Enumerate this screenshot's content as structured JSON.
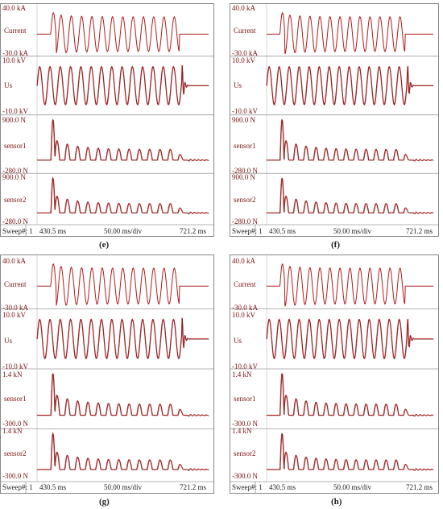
{
  "panels": [
    {
      "id": "e",
      "caption": "(e)",
      "channels": [
        {
          "name": "Current",
          "top": "40.0 kA",
          "bottom": "-30.0 kA"
        },
        {
          "name": "Us",
          "top": "10.0 kV",
          "bottom": "-10.0 kV"
        },
        {
          "name": "sensor1",
          "top": "900.0  N",
          "bottom": "-280.0  N"
        },
        {
          "name": "sensor2",
          "top": "900.0  N",
          "bottom": "-280.0  N"
        }
      ],
      "footer": {
        "sweep": "Sweep#: 1",
        "start": "430.5 ms",
        "scale": "50.00 ms/div",
        "end": "721.2 ms"
      }
    },
    {
      "id": "f",
      "caption": "(f)",
      "channels": [
        {
          "name": "Current",
          "top": "40.0 kA",
          "bottom": "-30.0 kA"
        },
        {
          "name": "Us",
          "top": "10.0 kV",
          "bottom": "-10.0 kV"
        },
        {
          "name": "sensor1",
          "top": "900.0  N",
          "bottom": "-280.0  N"
        },
        {
          "name": "sensor2",
          "top": "900.0  N",
          "bottom": "-280.0  N"
        }
      ],
      "footer": {
        "sweep": "Sweep#: 1",
        "start": "430.5 ms",
        "scale": "50.00 ms/div",
        "end": "721.2 ms"
      }
    },
    {
      "id": "g",
      "caption": "(g)",
      "channels": [
        {
          "name": "Current",
          "top": "40.0 kA",
          "bottom": "-30.0 kA"
        },
        {
          "name": "Us",
          "top": "10.0 kV",
          "bottom": "-10.0 kV"
        },
        {
          "name": "sensor1",
          "top": "1.4 kN",
          "bottom": "-300.0  N"
        },
        {
          "name": "sensor2",
          "top": "1.4 kN",
          "bottom": "-300.0  N"
        }
      ],
      "footer": {
        "sweep": "Sweep#: 1",
        "start": "430.5 ms",
        "scale": "50.00 ms/div",
        "end": "721.2 ms"
      }
    },
    {
      "id": "h",
      "caption": "(h)",
      "channels": [
        {
          "name": "Current",
          "top": "40.0 kA",
          "bottom": "-30.0 kA"
        },
        {
          "name": "Us",
          "top": "10.0 kV",
          "bottom": "-10.0 kV"
        },
        {
          "name": "sensor1",
          "top": "1.4 kN",
          "bottom": "-300.0  N"
        },
        {
          "name": "sensor2",
          "top": "1.4 kN",
          "bottom": "-300.0  N"
        }
      ],
      "footer": {
        "sweep": "Sweep#: 1",
        "start": "430.5 ms",
        "scale": "50.00 ms/div",
        "end": "721.2 ms"
      }
    }
  ],
  "colors": {
    "trace": "#b01c1c",
    "trace_dark": "#5a1010",
    "grid": "#cfcfcf",
    "label": "#7a1010"
  },
  "waveforms": {
    "Current": "pulse-train",
    "Us": "sine-with-transient",
    "sensor1": "decaying-oscillation",
    "sensor2": "decaying-oscillation"
  }
}
